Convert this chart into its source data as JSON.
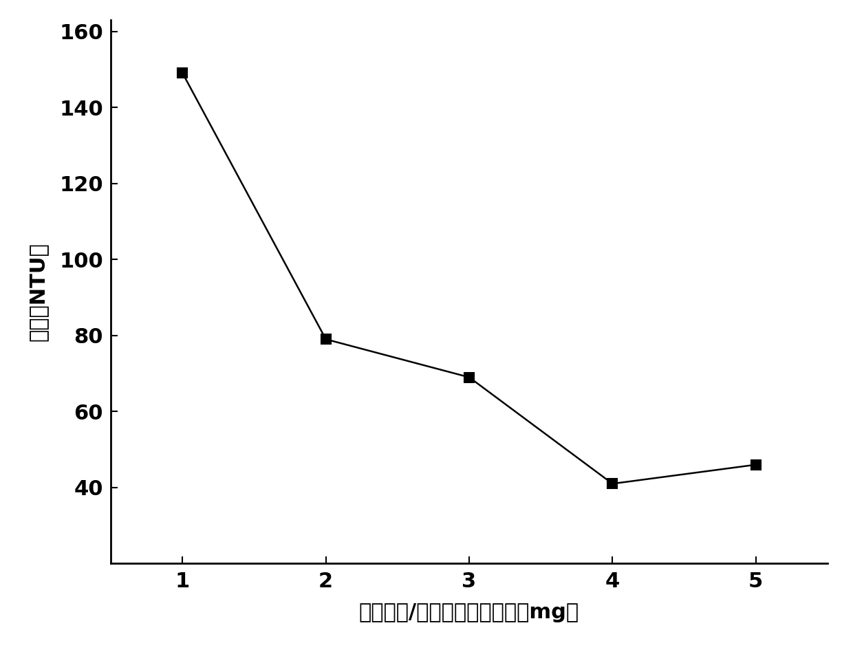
{
  "x": [
    1,
    2,
    3,
    4,
    5
  ],
  "y": [
    149,
    79,
    69,
    41,
    46
  ],
  "xlabel": "改性淠粉/聚胺复合物投加量（mg）",
  "ylabel": "浊度（NTU）",
  "xlim": [
    0.5,
    5.5
  ],
  "ylim": [
    20,
    163
  ],
  "yticks": [
    40,
    60,
    80,
    100,
    120,
    140,
    160
  ],
  "xticks": [
    1,
    2,
    3,
    4,
    5
  ],
  "line_color": "#000000",
  "marker": "s",
  "marker_size": 10,
  "line_width": 1.8,
  "background_color": "#ffffff",
  "xlabel_fontsize": 22,
  "ylabel_fontsize": 22,
  "tick_fontsize": 22
}
